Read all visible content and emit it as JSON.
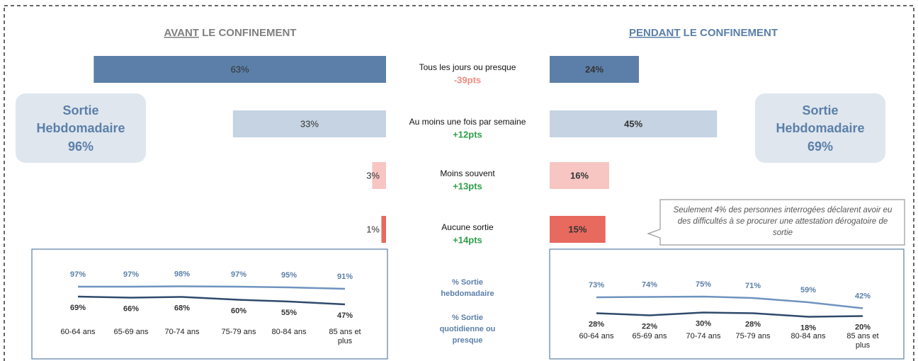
{
  "chart_data": [
    {
      "type": "bar",
      "categories": [
        "Tous les jours ou presque",
        "Au moins une fois par semaine",
        "Moins souvent",
        "Aucune sortie"
      ],
      "annotations": [
        "-39pts",
        "+12pts",
        "+13pts",
        "+14pts"
      ],
      "annotation_colors": [
        "#f08a80",
        "#2e9e4a",
        "#2e9e4a",
        "#2e9e4a"
      ],
      "colors": [
        "#5b7fa8",
        "#c5d3e2",
        "#f7c6c2",
        "#e8695e"
      ],
      "series": [
        {
          "title_emphasis": "AVANT",
          "title": "LE CONFINEMENT",
          "title_color": "#7f7f7f",
          "values": [
            63,
            33,
            3,
            1
          ],
          "value_labels": [
            "63%",
            "33%",
            "3%",
            "1%"
          ],
          "xlim": [
            0,
            100
          ],
          "summary": {
            "lines": [
              "Sortie",
              "Hebdomadaire"
            ],
            "value_label": "96%"
          }
        },
        {
          "title_emphasis": "PENDANT",
          "title": "LE CONFINEMENT",
          "title_color": "#5b7fa8",
          "values": [
            24,
            45,
            16,
            15
          ],
          "value_labels": [
            "24%",
            "45%",
            "16%",
            "15%"
          ],
          "xlim": [
            0,
            100
          ],
          "summary": {
            "lines": [
              "Sortie",
              "Hebdomadaire"
            ],
            "value_label": "69%"
          }
        }
      ],
      "note": "Seulement 4% des personnes interrogées déclarent avoir eu des difficultés à se procurer une attestation dérogatoire de sortie"
    },
    {
      "type": "line",
      "categories": [
        "60-64 ans",
        "65-69 ans",
        "70-74 ans",
        "75-79 ans",
        "80-84 ans",
        "85 ans et plus"
      ],
      "ylim": [
        0,
        100
      ],
      "series": [
        {
          "name": "% Sortie hebdomadaire",
          "color": "#6f93bf",
          "label_color": "#5b7fa8",
          "values": [
            97,
            97,
            98,
            97,
            95,
            91
          ],
          "value_labels": [
            "97%",
            "97%",
            "98%",
            "97%",
            "95%",
            "91%"
          ]
        },
        {
          "name": "% Sortie quotidienne ou presque",
          "color": "#2f4a6b",
          "label_color": "#333333",
          "values": [
            69,
            66,
            68,
            60,
            55,
            47
          ],
          "value_labels": [
            "69%",
            "66%",
            "68%",
            "60%",
            "55%",
            "47%"
          ]
        }
      ]
    },
    {
      "type": "line",
      "categories": [
        "60-64 ans",
        "65-69 ans",
        "70-74 ans",
        "75-79 ans",
        "80-84 ans",
        "85 ans et plus"
      ],
      "ylim": [
        0,
        100
      ],
      "series": [
        {
          "color": "#6f93bf",
          "label_color": "#5b7fa8",
          "values": [
            73,
            74,
            75,
            71,
            59,
            42
          ],
          "value_labels": [
            "73%",
            "74%",
            "75%",
            "71%",
            "59%",
            "42%"
          ]
        },
        {
          "color": "#2f4a6b",
          "label_color": "#333333",
          "values": [
            28,
            22,
            30,
            28,
            18,
            20
          ],
          "value_labels": [
            "28%",
            "22%",
            "30%",
            "28%",
            "18%",
            "20%"
          ]
        }
      ]
    }
  ]
}
